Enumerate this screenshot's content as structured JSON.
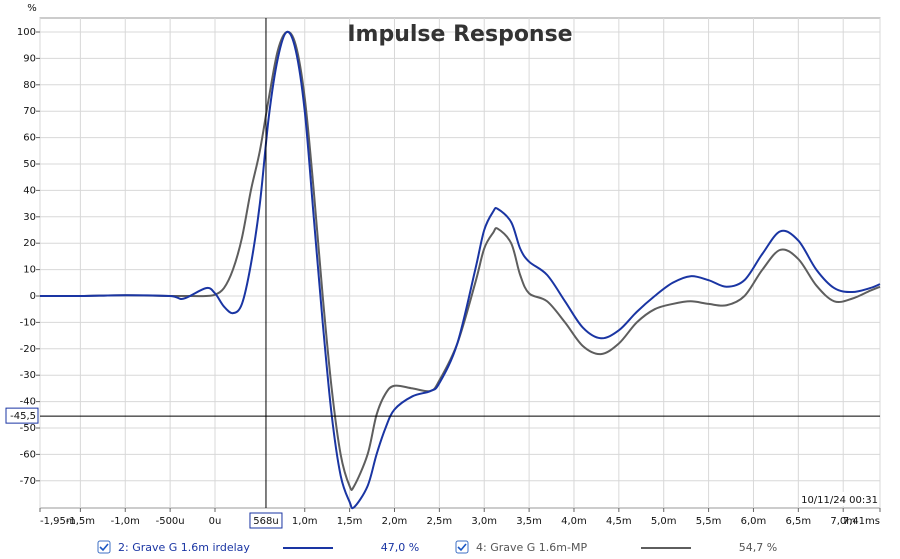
{
  "chart_data": {
    "type": "line",
    "title": "Impulse Response",
    "y_label": "%",
    "timestamp": "10/11/24 00:31",
    "xlim": [
      -1.95,
      7.41
    ],
    "ylim": [
      -80.3,
      105.3
    ],
    "xticks": [
      {
        "value": -1.95,
        "label": "-1,95m"
      },
      {
        "value": -1.5,
        "label": "-1,5m"
      },
      {
        "value": -1.0,
        "label": "-1,0m"
      },
      {
        "value": -0.5,
        "label": "-500u"
      },
      {
        "value": 0,
        "label": "0u"
      },
      {
        "value": 1.0,
        "label": "1,0m"
      },
      {
        "value": 1.5,
        "label": "1,5m"
      },
      {
        "value": 2.0,
        "label": "2,0m"
      },
      {
        "value": 2.5,
        "label": "2,5m"
      },
      {
        "value": 3.0,
        "label": "3,0m"
      },
      {
        "value": 3.5,
        "label": "3,5m"
      },
      {
        "value": 4.0,
        "label": "4,0m"
      },
      {
        "value": 4.5,
        "label": "4,5m"
      },
      {
        "value": 5.0,
        "label": "5,0m"
      },
      {
        "value": 5.5,
        "label": "5,5m"
      },
      {
        "value": 6.0,
        "label": "6,0m"
      },
      {
        "value": 6.5,
        "label": "6,5m"
      },
      {
        "value": 7.0,
        "label": "7,0m"
      },
      {
        "value": 7.41,
        "label": "7,41ms"
      }
    ],
    "yticks": [
      -70,
      -60,
      -50,
      -40,
      -30,
      -20,
      -10,
      0,
      10,
      20,
      30,
      40,
      50,
      60,
      70,
      80,
      90,
      100
    ],
    "grid": true,
    "cursor": {
      "x": 0.568,
      "x_label": "568u",
      "y": -45.5,
      "y_label": "-45,5"
    },
    "x": [
      -1.95,
      -1.5,
      -1.0,
      -0.5,
      -0.35,
      -0.1,
      0,
      0.1,
      0.2,
      0.3,
      0.4,
      0.5,
      0.6,
      0.7,
      0.8,
      0.9,
      1.0,
      1.1,
      1.2,
      1.3,
      1.4,
      1.5,
      1.55,
      1.7,
      1.8,
      1.9,
      2.0,
      2.2,
      2.4,
      2.5,
      2.7,
      2.9,
      3.0,
      3.1,
      3.15,
      3.3,
      3.4,
      3.5,
      3.7,
      3.9,
      4.1,
      4.3,
      4.5,
      4.7,
      4.9,
      5.1,
      5.3,
      5.5,
      5.7,
      5.9,
      6.1,
      6.3,
      6.5,
      6.7,
      6.9,
      7.1,
      7.3,
      7.41
    ],
    "series": [
      {
        "name": "4: Grave G 1.6m-MP",
        "percent": "54,7 %",
        "color": "#5e5e5e",
        "values": [
          0,
          0,
          0.3,
          0,
          0,
          0,
          0.5,
          3,
          10,
          22,
          40,
          55,
          75,
          93,
          100,
          95,
          75,
          40,
          0,
          -35,
          -60,
          -72,
          -72,
          -60,
          -45,
          -37,
          -34,
          -35,
          -36,
          -32,
          -18,
          5,
          18,
          24,
          25.5,
          20,
          8,
          1,
          -2,
          -10,
          -19,
          -22,
          -18,
          -10,
          -5,
          -3,
          -2,
          -3,
          -3.5,
          0,
          10,
          17.5,
          14,
          4,
          -2,
          -1,
          2,
          3.5
        ]
      },
      {
        "name": "2: Grave G 1.6m irdelay",
        "percent": "47,0 %",
        "color": "#1a35a3",
        "values": [
          0,
          0,
          0.3,
          0,
          -1,
          3,
          1,
          -4,
          -6.5,
          -3,
          12,
          35,
          68,
          90,
          100,
          93,
          70,
          30,
          -10,
          -45,
          -68,
          -78,
          -80,
          -72,
          -60,
          -50,
          -43,
          -38,
          -36,
          -33,
          -18,
          10,
          25,
          32,
          33,
          28,
          18,
          13,
          8,
          -2,
          -12,
          -16,
          -13,
          -6,
          0,
          5,
          7.5,
          6,
          3.5,
          6,
          16,
          24.5,
          21,
          10,
          3,
          1.5,
          3,
          4.5
        ]
      }
    ],
    "legend_order": [
      1,
      0
    ]
  }
}
